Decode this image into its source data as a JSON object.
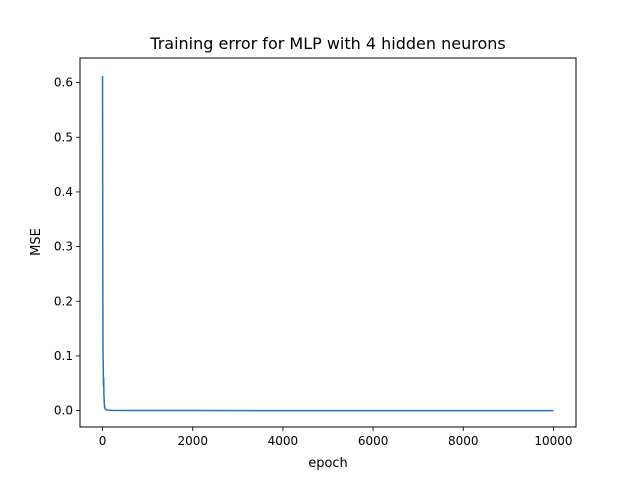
{
  "chart_data": {
    "type": "line",
    "title": "Training error for MLP with 4 hidden neurons",
    "xlabel": "epoch",
    "ylabel": "MSE",
    "xlim": [
      -500,
      10500
    ],
    "ylim": [
      -0.03,
      0.645
    ],
    "grid": false,
    "x_ticks": [
      0,
      2000,
      4000,
      6000,
      8000,
      10000
    ],
    "x_tick_labels": [
      "0",
      "2000",
      "4000",
      "6000",
      "8000",
      "10000"
    ],
    "y_ticks": [
      0.0,
      0.1,
      0.2,
      0.3,
      0.4,
      0.5,
      0.6
    ],
    "y_tick_labels": [
      "0.0",
      "0.1",
      "0.2",
      "0.3",
      "0.4",
      "0.5",
      "0.6"
    ],
    "series": [
      {
        "color": "#1f77b4",
        "x": [
          0,
          5,
          10,
          15,
          20,
          25,
          30,
          35,
          40,
          45,
          50,
          60,
          80,
          100,
          150,
          200,
          500,
          1000,
          2000,
          4000,
          6000,
          8000,
          10000
        ],
        "y": [
          0.612,
          0.27,
          0.105,
          0.085,
          0.045,
          0.06,
          0.03,
          0.02,
          0.012,
          0.008,
          0.005,
          0.003,
          0.002,
          0.001,
          0.0008,
          0.0005,
          0.0003,
          0.0002,
          0.0001,
          5e-05,
          3e-05,
          2e-05,
          1e-05
        ]
      }
    ]
  }
}
